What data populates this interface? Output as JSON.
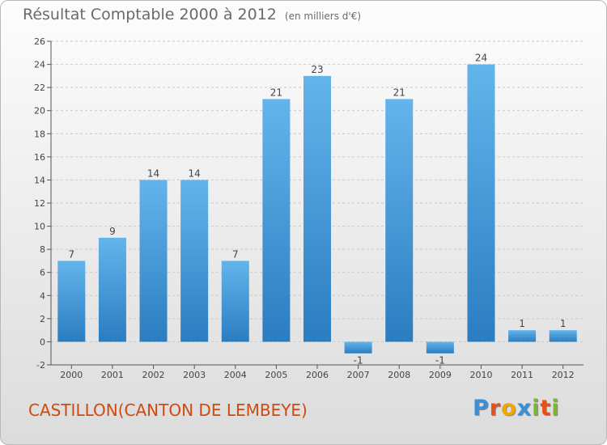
{
  "header": {
    "title": "Résultat Comptable 2000 à 2012",
    "subtitle": "(en milliers d'€)"
  },
  "footer": {
    "place": "CASTILLON(CANTON DE LEMBEYE)",
    "logo_letters": [
      "P",
      "r",
      "o",
      "x",
      "i",
      "t",
      "i"
    ],
    "logo_colors": [
      "#3a8fd6",
      "#e8501a",
      "#f0a800",
      "#3a8fd6",
      "#7cb82f",
      "#e8501a",
      "#7cb82f"
    ]
  },
  "colors": {
    "bar_top": "#64b4ec",
    "bar_bottom": "#2a7dc0",
    "axis": "#555555",
    "grid": "#c8c8c8",
    "text": "#444444"
  },
  "chart_data": {
    "type": "bar",
    "categories": [
      "2000",
      "2001",
      "2002",
      "2003",
      "2004",
      "2005",
      "2006",
      "2007",
      "2008",
      "2009",
      "2010",
      "2011",
      "2012"
    ],
    "values": [
      7,
      9,
      14,
      14,
      7,
      21,
      23,
      -1,
      21,
      -1,
      24,
      1,
      1
    ],
    "data_labels": [
      "7",
      "9",
      "14",
      "14",
      "7",
      "21",
      "23",
      "-1",
      "21",
      "-1",
      "24",
      "1",
      "1"
    ],
    "ylim": [
      -2,
      26
    ],
    "yticks": [
      -2,
      0,
      2,
      4,
      6,
      8,
      10,
      12,
      14,
      16,
      18,
      20,
      22,
      24,
      26
    ],
    "grid": true,
    "legend": "none"
  }
}
